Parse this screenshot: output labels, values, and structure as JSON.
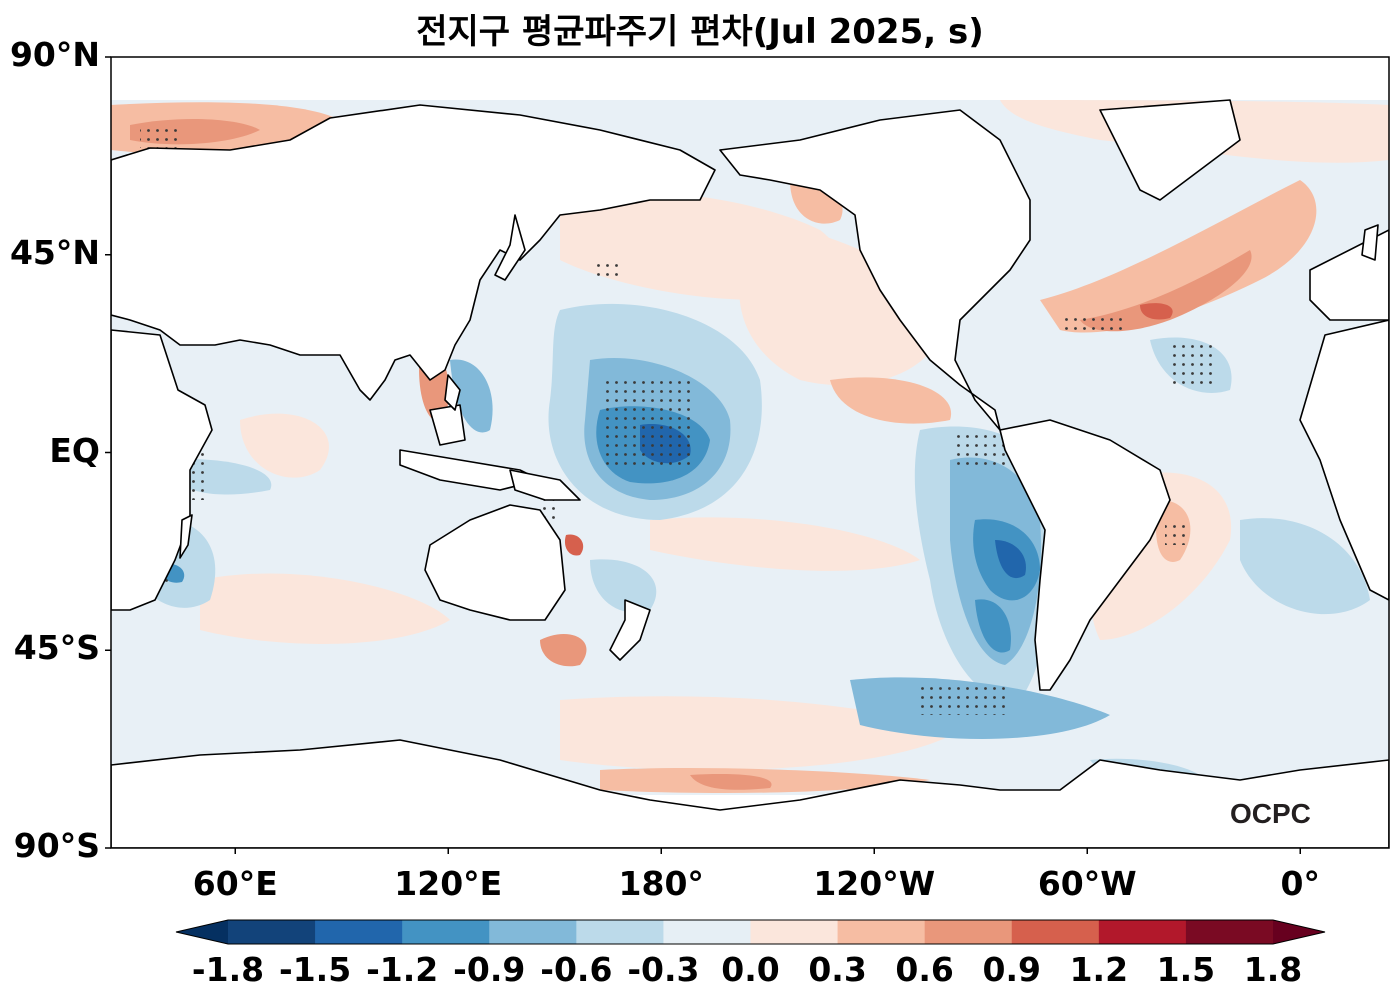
{
  "title": "전지구 평균파주기 편차(Jul 2025, s)",
  "logo_text": "OCPC",
  "map": {
    "projection": "plate-carree",
    "central_longitude": "160°E",
    "extent": {
      "lon": [
        25,
        385
      ],
      "lat": [
        -90,
        90
      ]
    },
    "lat_ticks": [
      {
        "label": "90°N",
        "lat": 90
      },
      {
        "label": "45°N",
        "lat": 45
      },
      {
        "label": "EQ",
        "lat": 0
      },
      {
        "label": "45°S",
        "lat": -45
      },
      {
        "label": "90°S",
        "lat": -90
      }
    ],
    "lon_ticks": [
      {
        "label": "60°E",
        "lon": 60
      },
      {
        "label": "120°E",
        "lon": 120
      },
      {
        "label": "180°",
        "lon": 180
      },
      {
        "label": "120°W",
        "lon": 240
      },
      {
        "label": "60°W",
        "lon": 300
      },
      {
        "label": "0°",
        "lon": 360
      }
    ],
    "data_lat_range": [
      -78,
      80
    ],
    "stippling": "significant anomalies marked with dots",
    "features": [
      {
        "name": "negative-anomaly-central-pacific",
        "lon": 175,
        "lat": 2,
        "value": -1.2
      },
      {
        "name": "negative-anomaly-west-south-america",
        "lon": 275,
        "lat": -25,
        "value": -1.2
      },
      {
        "name": "negative-anomaly-southeast-pacific",
        "lon": 265,
        "lat": -55,
        "value": -0.6
      },
      {
        "name": "positive-anomaly-north-atlantic",
        "lon": 320,
        "lat": 40,
        "value": 0.9
      },
      {
        "name": "positive-anomaly-barents-sea",
        "lon": 40,
        "lat": 76,
        "value": 0.6
      },
      {
        "name": "positive-anomaly-gulf-of-alaska",
        "lon": 215,
        "lat": 58,
        "value": 0.6
      }
    ]
  },
  "colorbar": {
    "ticks": [
      "-1.8",
      "-1.5",
      "-1.2",
      "-0.9",
      "-0.6",
      "-0.3",
      "0.0",
      "0.3",
      "0.6",
      "0.9",
      "1.2",
      "1.5",
      "1.8"
    ],
    "colors": [
      "#053061",
      "#12437a",
      "#2166ac",
      "#4393c3",
      "#82b9d9",
      "#bcdaea",
      "#e6eff5",
      "#fbe6dc",
      "#f6bda3",
      "#e9977b",
      "#d6604d",
      "#b2182b",
      "#7a0a23",
      "#67001f"
    ],
    "extend": "both"
  }
}
